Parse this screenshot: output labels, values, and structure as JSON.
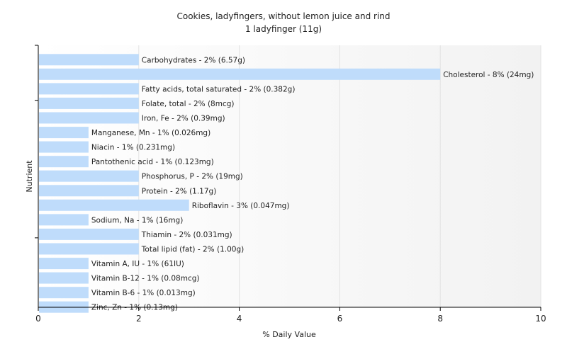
{
  "chart_data": {
    "type": "bar",
    "orientation": "horizontal",
    "title": "Cookies, ladyfingers, without lemon juice and rind",
    "subtitle": "1 ladyfinger (11g)",
    "xlabel": "% Daily Value",
    "ylabel": "Nutrient",
    "xlim": [
      0,
      10
    ],
    "xticks": [
      "0",
      "2",
      "4",
      "6",
      "8",
      "10"
    ],
    "grid": true,
    "bar_color": "#bfdcfb",
    "categories": [
      "Carbohydrates",
      "Cholesterol",
      "Fatty acids, total saturated",
      "Folate, total",
      "Iron, Fe",
      "Manganese, Mn",
      "Niacin",
      "Pantothenic acid",
      "Phosphorus, P",
      "Protein",
      "Riboflavin",
      "Sodium, Na",
      "Thiamin",
      "Total lipid (fat)",
      "Vitamin A, IU",
      "Vitamin B-12",
      "Vitamin B-6",
      "Zinc, Zn"
    ],
    "values": [
      2,
      8,
      2,
      2,
      2,
      1,
      1,
      1,
      2,
      2,
      3,
      1,
      2,
      2,
      1,
      1,
      1,
      1
    ],
    "labels": [
      "Carbohydrates - 2% (6.57g)",
      "Cholesterol - 8% (24mg)",
      "Fatty acids, total saturated - 2% (0.382g)",
      "Folate, total - 2% (8mcg)",
      "Iron, Fe - 2% (0.39mg)",
      "Manganese, Mn - 1% (0.026mg)",
      "Niacin - 1% (0.231mg)",
      "Pantothenic acid - 1% (0.123mg)",
      "Phosphorus, P - 2% (19mg)",
      "Protein - 2% (1.17g)",
      "Riboflavin - 3% (0.047mg)",
      "Sodium, Na - 1% (16mg)",
      "Thiamin - 2% (0.031mg)",
      "Total lipid (fat) - 2% (1.00g)",
      "Vitamin A, IU - 1% (61IU)",
      "Vitamin B-12 - 1% (0.08mcg)",
      "Vitamin B-6 - 1% (0.013mg)",
      "Zinc, Zn - 1% (0.13mg)"
    ]
  }
}
